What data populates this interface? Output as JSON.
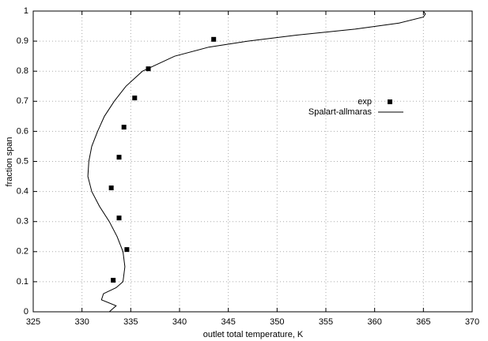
{
  "chart_data": {
    "type": "line",
    "x_label": "outlet total temperature, K",
    "y_label": "fraction span",
    "xlim": [
      325,
      370
    ],
    "xticks": [
      325,
      330,
      335,
      340,
      345,
      350,
      355,
      360,
      365,
      370
    ],
    "ylim": [
      0,
      1
    ],
    "yticks": [
      0,
      0.1,
      0.2,
      0.3,
      0.4,
      0.5,
      0.6,
      0.7,
      0.8,
      0.9,
      1
    ],
    "grid": true,
    "series": [
      {
        "name": "exp",
        "style": "points",
        "color": "#000000",
        "x": [
          333.2,
          334.6,
          333.8,
          333.0,
          333.8,
          334.3,
          335.4,
          336.8,
          343.5
        ],
        "values": [
          0.105,
          0.207,
          0.312,
          0.412,
          0.514,
          0.614,
          0.711,
          0.808,
          0.906
        ]
      },
      {
        "name": "Spalart-allmaras",
        "style": "line",
        "color": "#000000",
        "x": [
          332.8,
          333.5,
          332.0,
          332.2,
          333.5,
          334.2,
          334.4,
          334.2,
          333.6,
          332.8,
          331.8,
          331.0,
          330.6,
          330.7,
          331.0,
          331.6,
          332.3,
          333.3,
          334.5,
          336.2,
          339.5,
          343,
          347,
          352,
          358,
          362.5,
          365,
          365.2,
          365.0
        ],
        "values": [
          0,
          0.02,
          0.04,
          0.06,
          0.08,
          0.1,
          0.15,
          0.2,
          0.25,
          0.3,
          0.35,
          0.4,
          0.45,
          0.5,
          0.55,
          0.6,
          0.65,
          0.7,
          0.75,
          0.8,
          0.85,
          0.88,
          0.9,
          0.92,
          0.94,
          0.96,
          0.98,
          0.99,
          1.0
        ]
      }
    ]
  }
}
